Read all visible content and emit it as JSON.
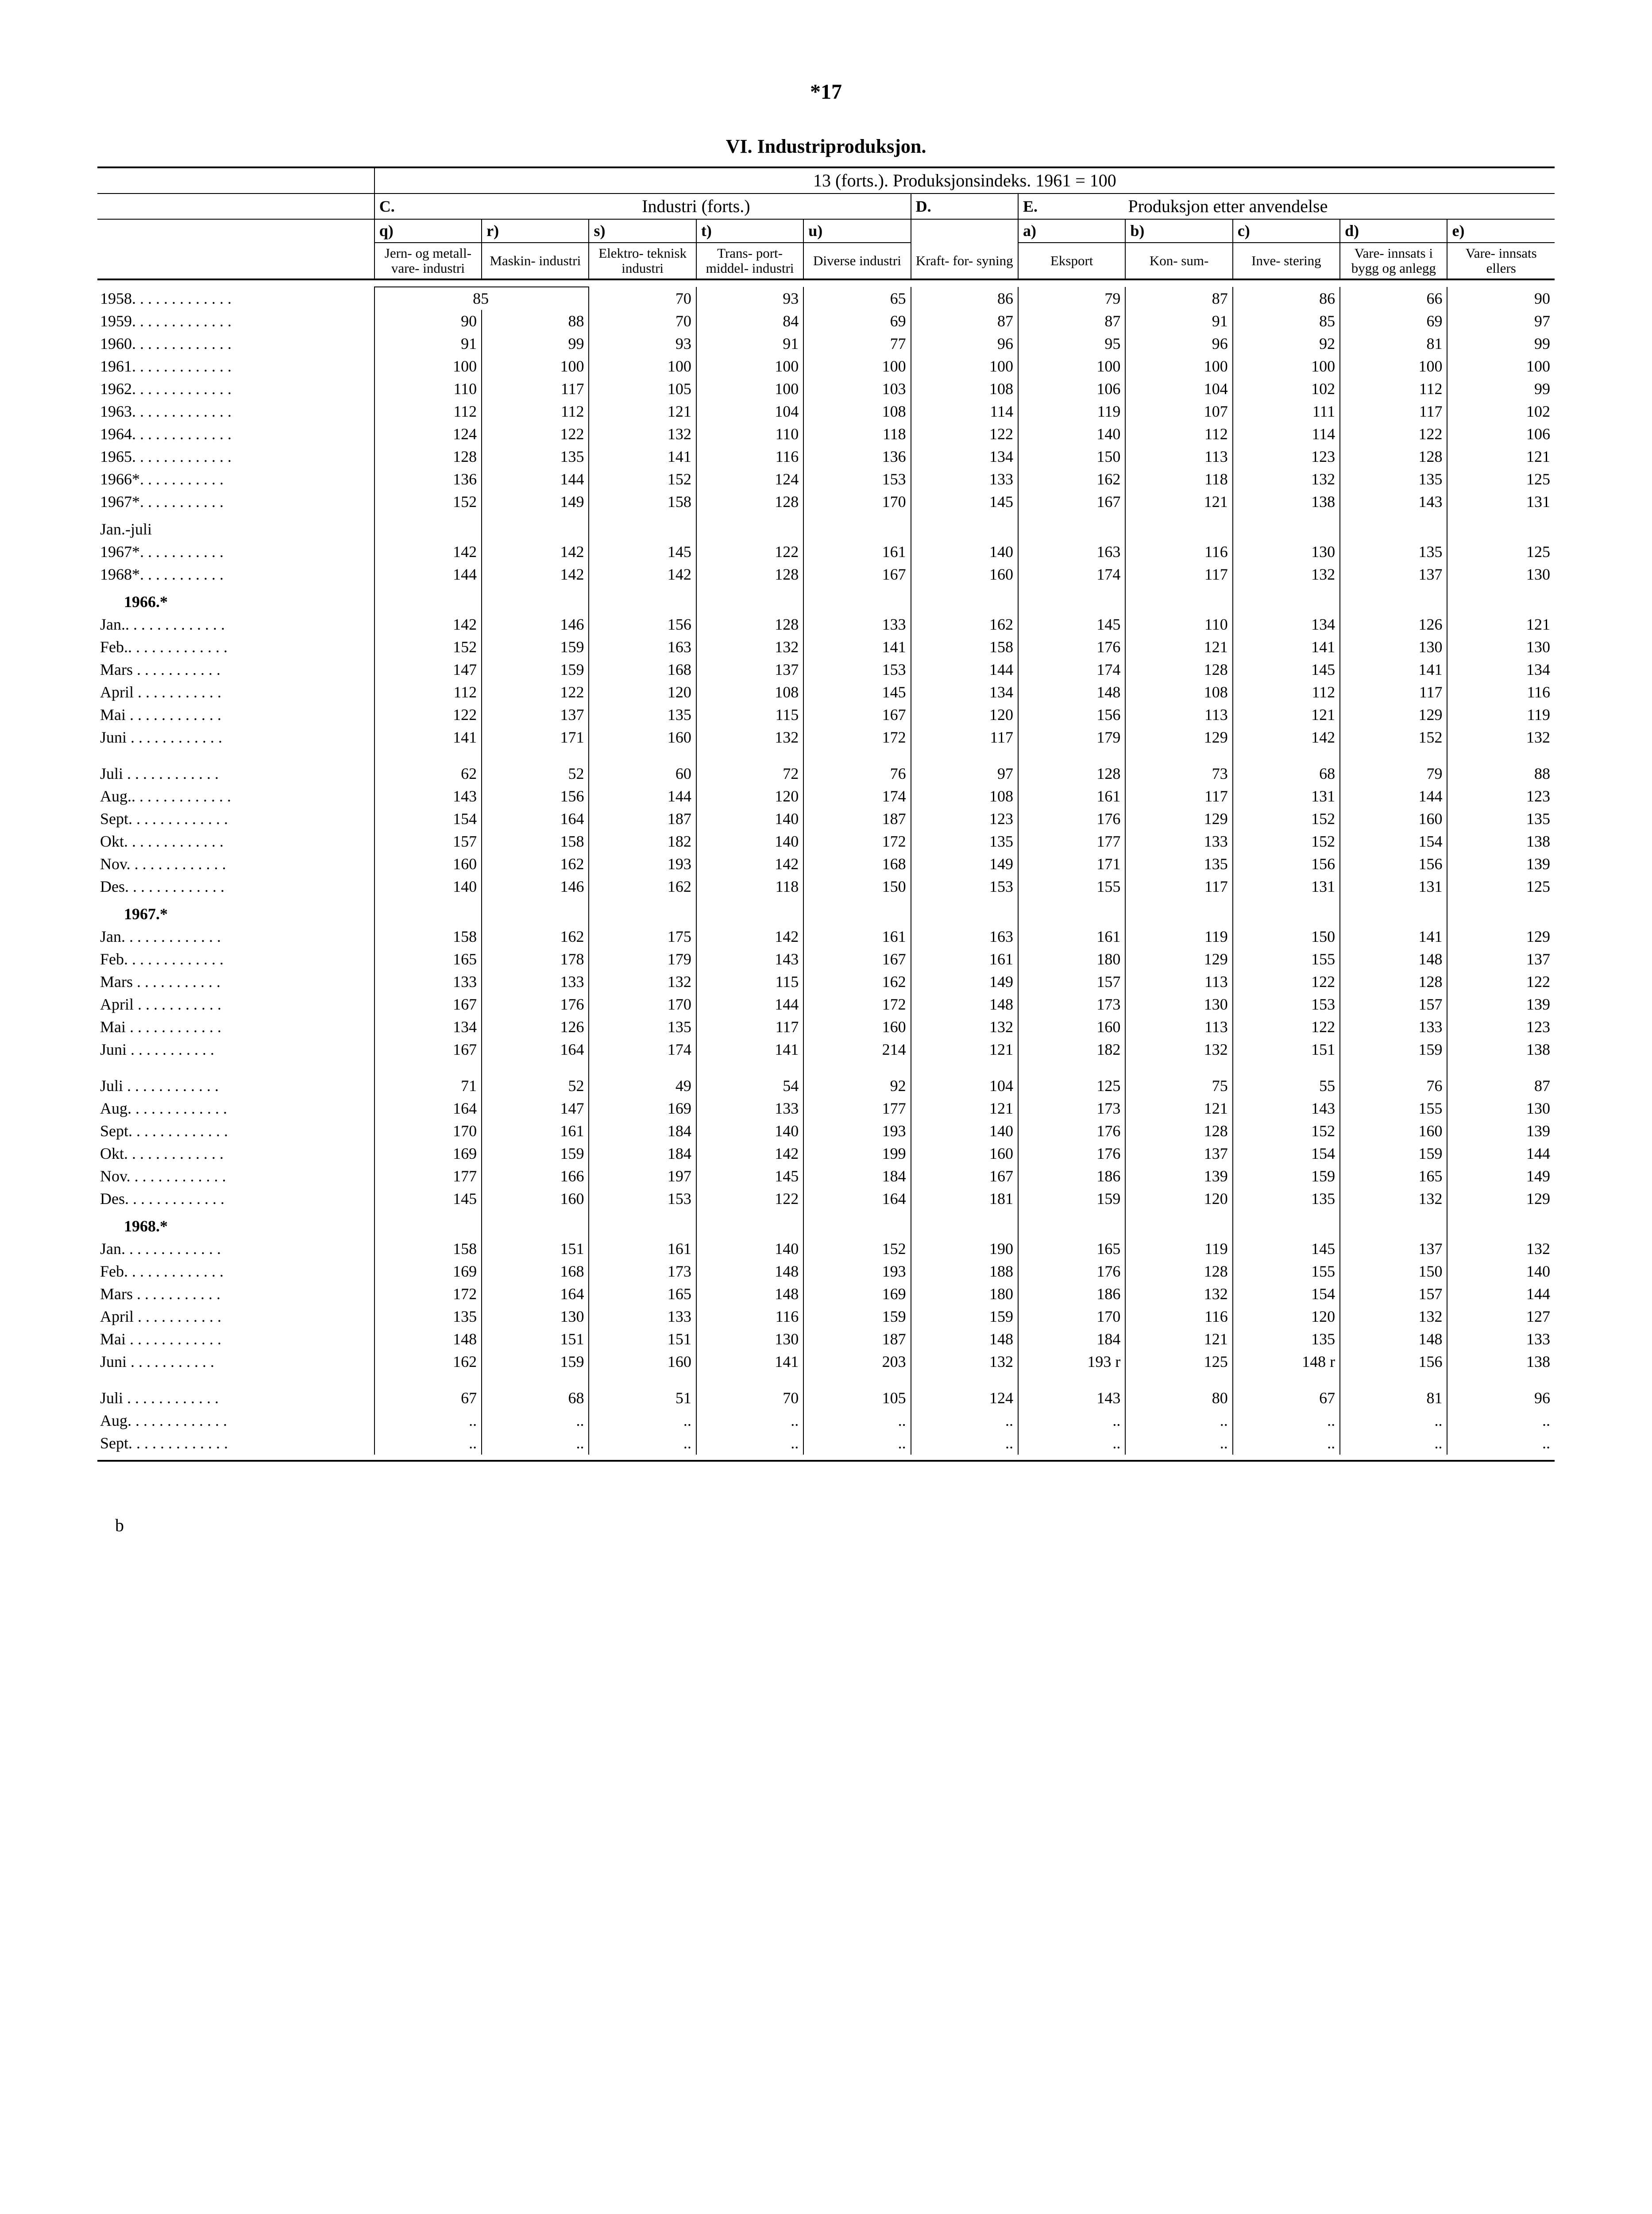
{
  "page_number": "*17",
  "title": "VI. Industriproduksjon.",
  "super_caption": "13 (forts.). Produksjonsindeks. 1961 = 100",
  "group_C": "C.",
  "group_C_label": "Industri (forts.)",
  "group_D": "D.",
  "group_E": "E.",
  "group_E_label": "Produksjon etter anvendelse",
  "col_letters": {
    "q": "q)",
    "r": "r)",
    "s": "s)",
    "t": "t)",
    "u": "u)",
    "a": "a)",
    "b": "b)",
    "c": "c)",
    "d": "d)",
    "e": "e)"
  },
  "col_names": {
    "q": "Jern- og metall- vare- industri",
    "r": "Maskin- industri",
    "s": "Elektro- teknisk industri",
    "t": "Trans- port- middel- industri",
    "u": "Diverse industri",
    "D": "Kraft- for- syning",
    "a": "Eksport",
    "b": "Kon- sum-",
    "c": "Inve- stering",
    "d": "Vare- innsats i bygg og anlegg",
    "e": "Vare- innsats ellers"
  },
  "footer": "b",
  "rows_years": [
    {
      "label": "1958",
      "dots": ". . . . . . . . . . . . .",
      "v": [
        "85",
        "",
        "70",
        "93",
        "65",
        "86",
        "79",
        "87",
        "86",
        "66",
        "90"
      ],
      "merge_qr": true
    },
    {
      "label": "1959",
      "dots": ". . . . . . . . . . . . .",
      "v": [
        "90",
        "88",
        "70",
        "84",
        "69",
        "87",
        "87",
        "91",
        "85",
        "69",
        "97"
      ]
    },
    {
      "label": "1960",
      "dots": ". . . . . . . . . . . . .",
      "v": [
        "91",
        "99",
        "93",
        "91",
        "77",
        "96",
        "95",
        "96",
        "92",
        "81",
        "99"
      ]
    },
    {
      "label": "1961",
      "dots": ". . . . . . . . . . . . .",
      "v": [
        "100",
        "100",
        "100",
        "100",
        "100",
        "100",
        "100",
        "100",
        "100",
        "100",
        "100"
      ]
    },
    {
      "label": "1962",
      "dots": ". . . . . . . . . . . . .",
      "v": [
        "110",
        "117",
        "105",
        "100",
        "103",
        "108",
        "106",
        "104",
        "102",
        "112",
        "99"
      ]
    },
    {
      "label": "1963",
      "dots": ". . . . . . . . . . . . .",
      "v": [
        "112",
        "112",
        "121",
        "104",
        "108",
        "114",
        "119",
        "107",
        "111",
        "117",
        "102"
      ]
    },
    {
      "label": "1964",
      "dots": ". . . . . . . . . . . . .",
      "v": [
        "124",
        "122",
        "132",
        "110",
        "118",
        "122",
        "140",
        "112",
        "114",
        "122",
        "106"
      ]
    },
    {
      "label": "1965",
      "dots": ". . . . . . . . . . . . .",
      "v": [
        "128",
        "135",
        "141",
        "116",
        "136",
        "134",
        "150",
        "113",
        "123",
        "128",
        "121"
      ]
    },
    {
      "label": "1966*",
      "dots": ". . . . . . . . . . .",
      "v": [
        "136",
        "144",
        "152",
        "124",
        "153",
        "133",
        "162",
        "118",
        "132",
        "135",
        "125"
      ]
    },
    {
      "label": "1967*",
      "dots": ". . . . . . . . . . .",
      "v": [
        "152",
        "149",
        "158",
        "128",
        "170",
        "145",
        "167",
        "121",
        "138",
        "143",
        "131"
      ]
    }
  ],
  "janjuli_heading": "Jan.-juli",
  "rows_janjuli": [
    {
      "label": "1967*",
      "dots": ". . . . . . . . . . .",
      "v": [
        "142",
        "142",
        "145",
        "122",
        "161",
        "140",
        "163",
        "116",
        "130",
        "135",
        "125"
      ]
    },
    {
      "label": "1968*",
      "dots": ". . . . . . . . . . .",
      "v": [
        "144",
        "142",
        "142",
        "128",
        "167",
        "160",
        "174",
        "117",
        "132",
        "137",
        "130"
      ]
    }
  ],
  "section_1966": "1966.*",
  "rows_1966": [
    {
      "label": "Jan.",
      "dots": ". . . . . . . . . . . . .",
      "v": [
        "142",
        "146",
        "156",
        "128",
        "133",
        "162",
        "145",
        "110",
        "134",
        "126",
        "121"
      ]
    },
    {
      "label": "Feb.",
      "dots": ". . . . . . . . . . . . .",
      "v": [
        "152",
        "159",
        "163",
        "132",
        "141",
        "158",
        "176",
        "121",
        "141",
        "130",
        "130"
      ]
    },
    {
      "label": "Mars",
      "dots": " . . . . . . . . . . .",
      "v": [
        "147",
        "159",
        "168",
        "137",
        "153",
        "144",
        "174",
        "128",
        "145",
        "141",
        "134"
      ]
    },
    {
      "label": "April",
      "dots": " . . . . . . . . . . .",
      "v": [
        "112",
        "122",
        "120",
        "108",
        "145",
        "134",
        "148",
        "108",
        "112",
        "117",
        "116"
      ]
    },
    {
      "label": "Mai",
      "dots": " . . . . . . . . . . . .",
      "v": [
        "122",
        "137",
        "135",
        "115",
        "167",
        "120",
        "156",
        "113",
        "121",
        "129",
        "119"
      ]
    },
    {
      "label": "Juni",
      "dots": " . . . . . . . . . . . .",
      "v": [
        "141",
        "171",
        "160",
        "132",
        "172",
        "117",
        "179",
        "129",
        "142",
        "152",
        "132"
      ]
    }
  ],
  "rows_1966b": [
    {
      "label": "Juli",
      "dots": " . . . . . . . . . . . .",
      "v": [
        "62",
        "52",
        "60",
        "72",
        "76",
        "97",
        "128",
        "73",
        "68",
        "79",
        "88"
      ]
    },
    {
      "label": "Aug.",
      "dots": ". . . . . . . . . . . . .",
      "v": [
        "143",
        "156",
        "144",
        "120",
        "174",
        "108",
        "161",
        "117",
        "131",
        "144",
        "123"
      ]
    },
    {
      "label": "Sept.",
      "dots": " . . . . . . . . . . . .",
      "v": [
        "154",
        "164",
        "187",
        "140",
        "187",
        "123",
        "176",
        "129",
        "152",
        "160",
        "135"
      ]
    },
    {
      "label": "Okt.",
      "dots": " . . . . . . . . . . . .",
      "v": [
        "157",
        "158",
        "182",
        "140",
        "172",
        "135",
        "177",
        "133",
        "152",
        "154",
        "138"
      ]
    },
    {
      "label": "Nov.",
      "dots": " . . . . . . . . . . . .",
      "v": [
        "160",
        "162",
        "193",
        "142",
        "168",
        "149",
        "171",
        "135",
        "156",
        "156",
        "139"
      ]
    },
    {
      "label": "Des.",
      "dots": " . . . . . . . . . . . .",
      "v": [
        "140",
        "146",
        "162",
        "118",
        "150",
        "153",
        "155",
        "117",
        "131",
        "131",
        "125"
      ]
    }
  ],
  "section_1967": "1967.*",
  "rows_1967": [
    {
      "label": "Jan.",
      "dots": " . . . . . . . . . . . .",
      "v": [
        "158",
        "162",
        "175",
        "142",
        "161",
        "163",
        "161",
        "119",
        "150",
        "141",
        "129"
      ]
    },
    {
      "label": "Feb.",
      "dots": " . . . . . . . . . . . .",
      "v": [
        "165",
        "178",
        "179",
        "143",
        "167",
        "161",
        "180",
        "129",
        "155",
        "148",
        "137"
      ]
    },
    {
      "label": "Mars",
      "dots": " . . . . . . . . . . .",
      "v": [
        "133",
        "133",
        "132",
        "115",
        "162",
        "149",
        "157",
        "113",
        "122",
        "128",
        "122"
      ]
    },
    {
      "label": "April",
      "dots": " . . . . . . . . . . .",
      "v": [
        "167",
        "176",
        "170",
        "144",
        "172",
        "148",
        "173",
        "130",
        "153",
        "157",
        "139"
      ]
    },
    {
      "label": "Mai",
      "dots": " . . . . . . . . . . . .",
      "v": [
        "134",
        "126",
        "135",
        "117",
        "160",
        "132",
        "160",
        "113",
        "122",
        "133",
        "123"
      ]
    },
    {
      "label": "Juni",
      "dots": " . . . . . . . . . . .",
      "v": [
        "167",
        "164",
        "174",
        "141",
        "214",
        "121",
        "182",
        "132",
        "151",
        "159",
        "138"
      ]
    }
  ],
  "rows_1967b": [
    {
      "label": "Juli",
      "dots": " . . . . . . . . . . . .",
      "v": [
        "71",
        "52",
        "49",
        "54",
        "92",
        "104",
        "125",
        "75",
        "55",
        "76",
        "87"
      ]
    },
    {
      "label": "Aug.",
      "dots": " . . . . . . . . . . . .",
      "v": [
        "164",
        "147",
        "169",
        "133",
        "177",
        "121",
        "173",
        "121",
        "143",
        "155",
        "130"
      ]
    },
    {
      "label": "Sept.",
      "dots": " . . . . . . . . . . . .",
      "v": [
        "170",
        "161",
        "184",
        "140",
        "193",
        "140",
        "176",
        "128",
        "152",
        "160",
        "139"
      ]
    },
    {
      "label": "Okt.",
      "dots": " . . . . . . . . . . . .",
      "v": [
        "169",
        "159",
        "184",
        "142",
        "199",
        "160",
        "176",
        "137",
        "154",
        "159",
        "144"
      ]
    },
    {
      "label": "Nov.",
      "dots": " . . . . . . . . . . . .",
      "v": [
        "177",
        "166",
        "197",
        "145",
        "184",
        "167",
        "186",
        "139",
        "159",
        "165",
        "149"
      ]
    },
    {
      "label": "Des.",
      "dots": " . . . . . . . . . . . .",
      "v": [
        "145",
        "160",
        "153",
        "122",
        "164",
        "181",
        "159",
        "120",
        "135",
        "132",
        "129"
      ]
    }
  ],
  "section_1968": "1968.*",
  "rows_1968": [
    {
      "label": "Jan.",
      "dots": " . . . . . . . . . . . .",
      "v": [
        "158",
        "151",
        "161",
        "140",
        "152",
        "190",
        "165",
        "119",
        "145",
        "137",
        "132"
      ]
    },
    {
      "label": "Feb.",
      "dots": " . . . . . . . . . . . .",
      "v": [
        "169",
        "168",
        "173",
        "148",
        "193",
        "188",
        "176",
        "128",
        "155",
        "150",
        "140"
      ]
    },
    {
      "label": "Mars",
      "dots": " . . . . . . . . . . .",
      "v": [
        "172",
        "164",
        "165",
        "148",
        "169",
        "180",
        "186",
        "132",
        "154",
        "157",
        "144"
      ]
    },
    {
      "label": "April",
      "dots": " . . . . . . . . . . .",
      "v": [
        "135",
        "130",
        "133",
        "116",
        "159",
        "159",
        "170",
        "116",
        "120",
        "132",
        "127"
      ]
    },
    {
      "label": "Mai",
      "dots": " . . . . . . . . . . . .",
      "v": [
        "148",
        "151",
        "151",
        "130",
        "187",
        "148",
        "184",
        "121",
        "135",
        "148",
        "133"
      ]
    },
    {
      "label": "Juni",
      "dots": " . . . . . . . . . . .",
      "v": [
        "162",
        "159",
        "160",
        "141",
        "203",
        "132",
        "193 r",
        "125",
        "148 r",
        "156",
        "138"
      ]
    }
  ],
  "rows_1968b": [
    {
      "label": "Juli",
      "dots": " . . . . . . . . . . . .",
      "v": [
        "67",
        "68",
        "51",
        "70",
        "105",
        "124",
        "143",
        "80",
        "67",
        "81",
        "96"
      ]
    },
    {
      "label": "Aug.",
      "dots": " . . . . . . . . . . . .",
      "v": [
        "..",
        "..",
        "..",
        "..",
        "..",
        "..",
        "..",
        "..",
        "..",
        "..",
        ".."
      ]
    },
    {
      "label": "Sept.",
      "dots": " . . . . . . . . . . . .",
      "v": [
        "..",
        "..",
        "..",
        "..",
        "..",
        "..",
        "..",
        "..",
        "..",
        "..",
        ".."
      ]
    }
  ]
}
